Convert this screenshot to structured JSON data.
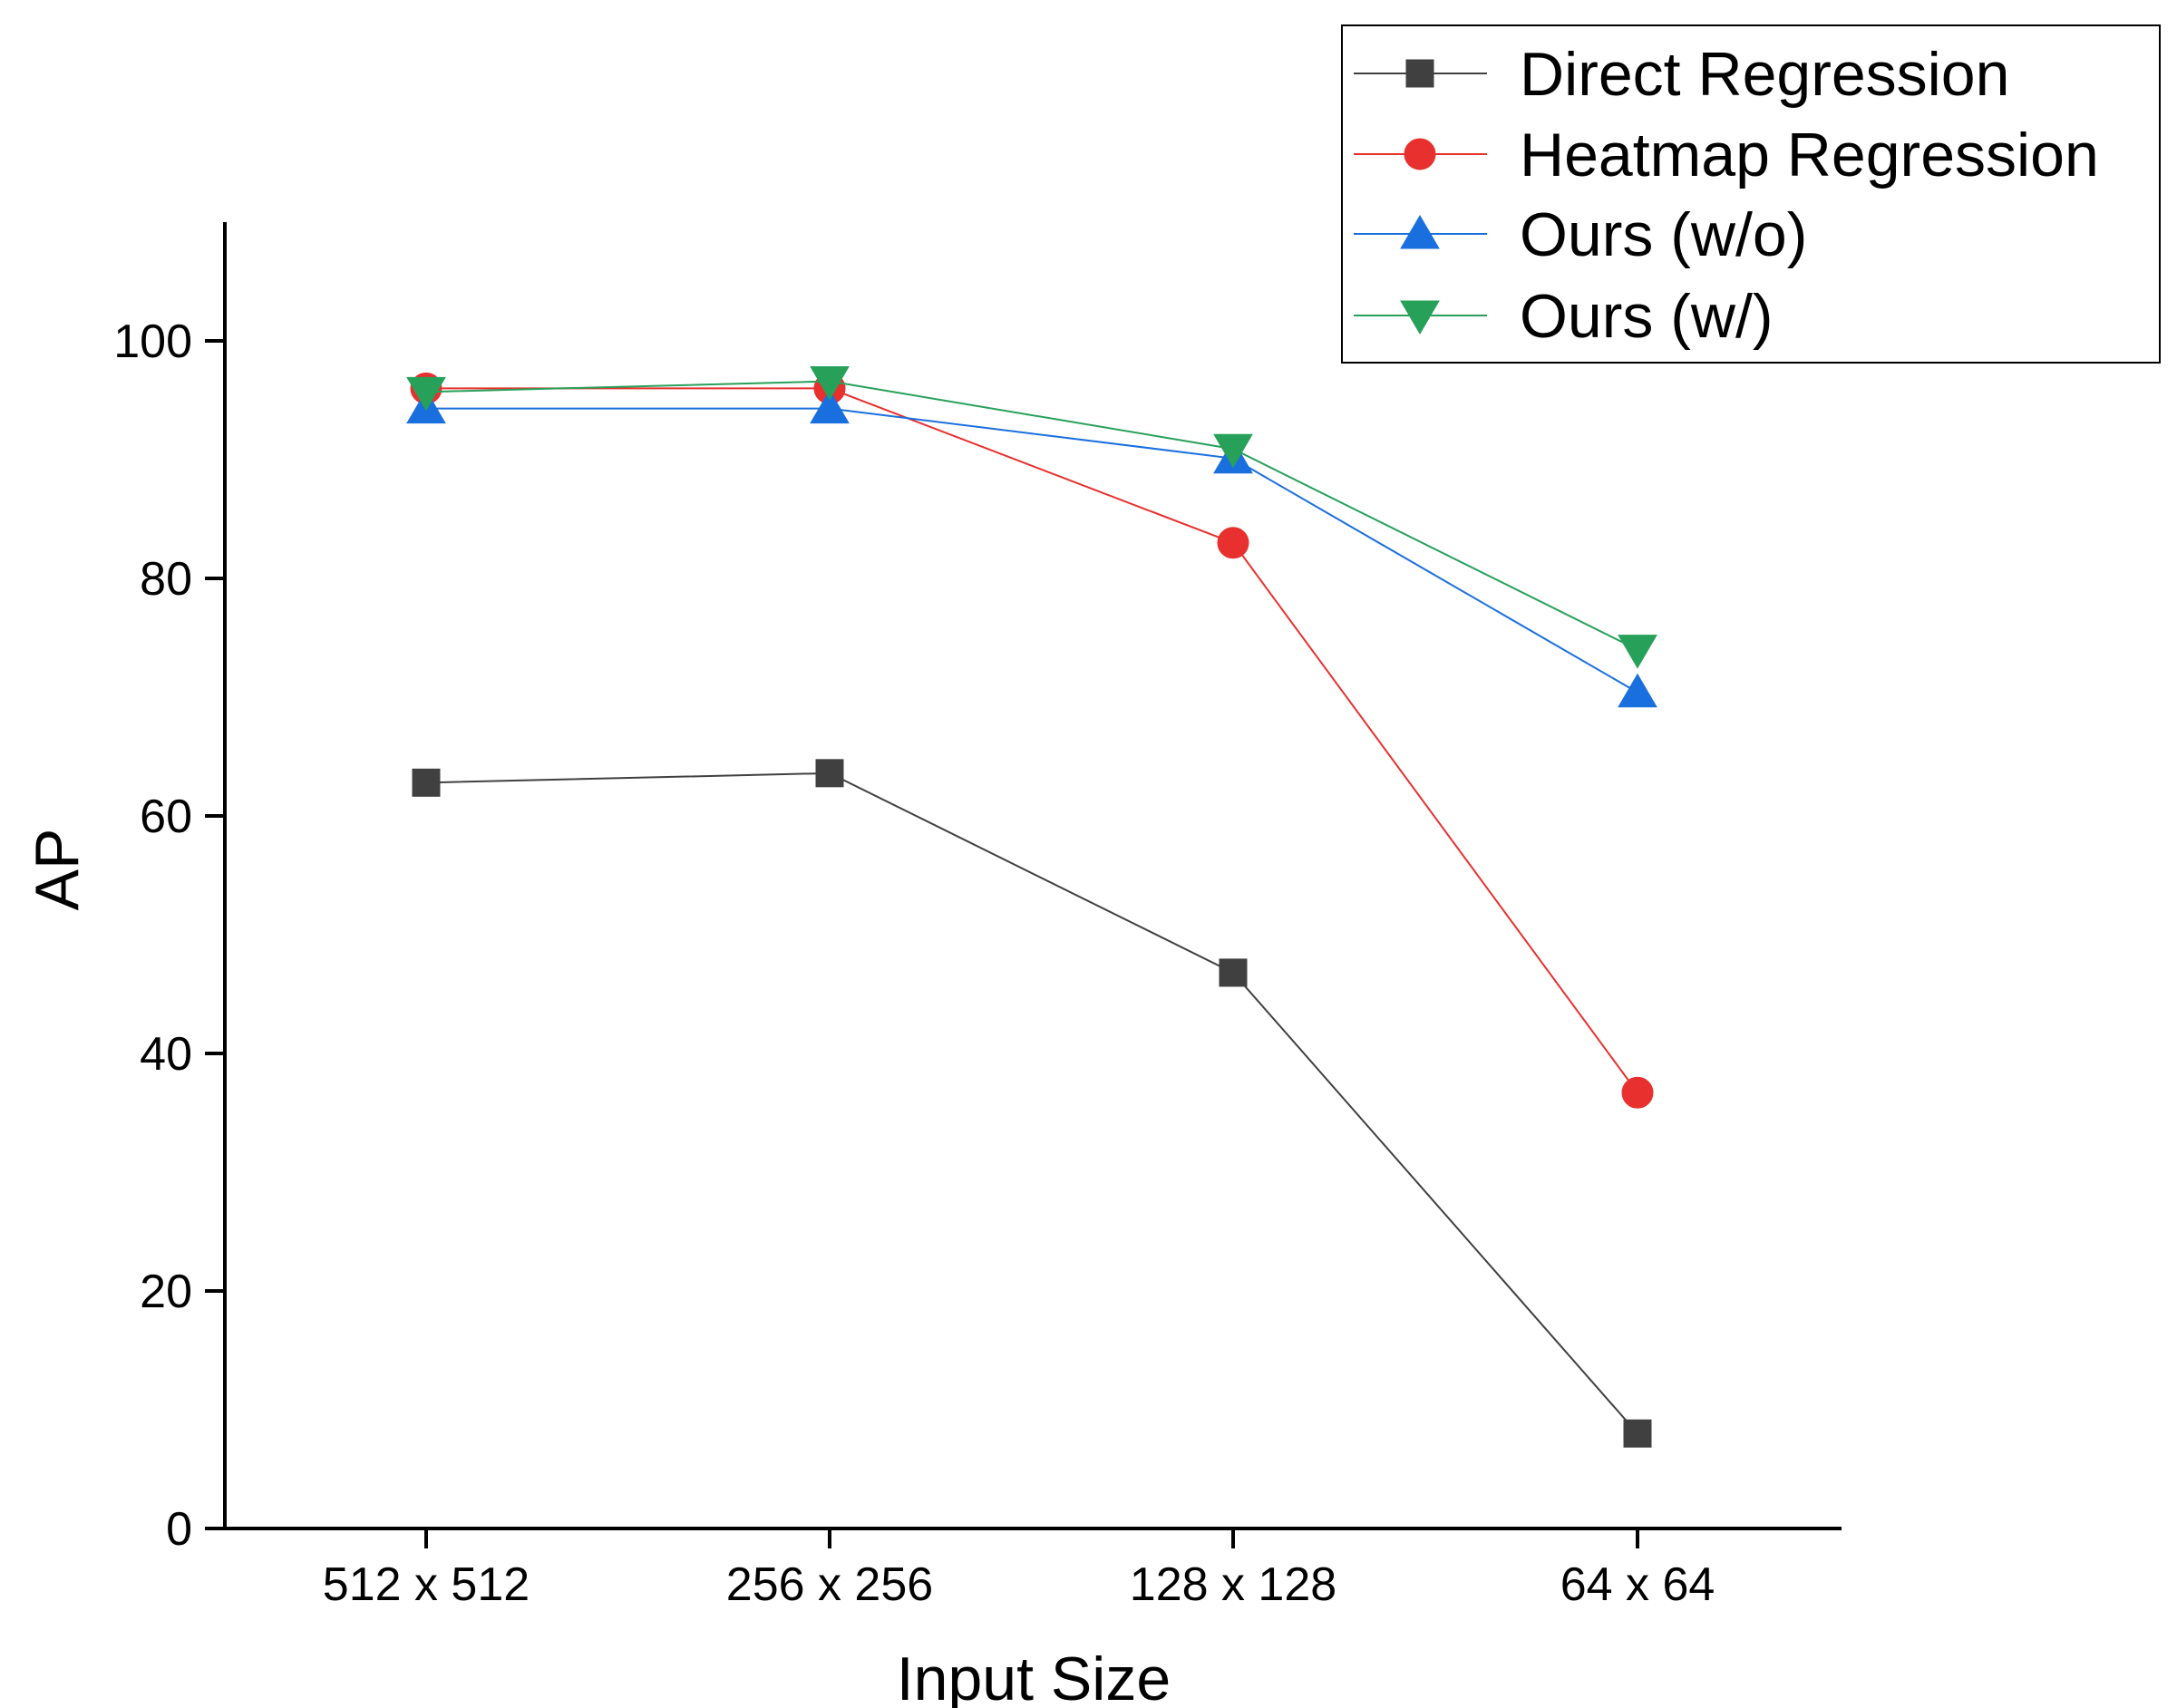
{
  "chart_data": {
    "type": "line",
    "title": "",
    "xlabel": "Input Size",
    "ylabel": "AP",
    "categories": [
      "512 x 512",
      "256 x 256",
      "128 x 128",
      "64 x 64"
    ],
    "ylim": [
      0,
      110
    ],
    "yticks": [
      0,
      20,
      40,
      60,
      80,
      100
    ],
    "grid": false,
    "legend_position": "top-right",
    "series": [
      {
        "name": "Direct Regression",
        "values": [
          62.8,
          63.6,
          46.8,
          8.0
        ],
        "color": "#404040",
        "marker": "square"
      },
      {
        "name": "Heatmap Regression",
        "values": [
          96.0,
          96.0,
          83.0,
          36.7
        ],
        "color": "#e8302f",
        "marker": "circle"
      },
      {
        "name": "Ours (w/o)",
        "values": [
          94.3,
          94.3,
          90.1,
          70.4
        ],
        "color": "#1a6fde",
        "marker": "triangle-up"
      },
      {
        "name": "Ours (w/)",
        "values": [
          95.7,
          96.6,
          90.9,
          74.0
        ],
        "color": "#27a05a",
        "marker": "triangle-down"
      }
    ]
  }
}
